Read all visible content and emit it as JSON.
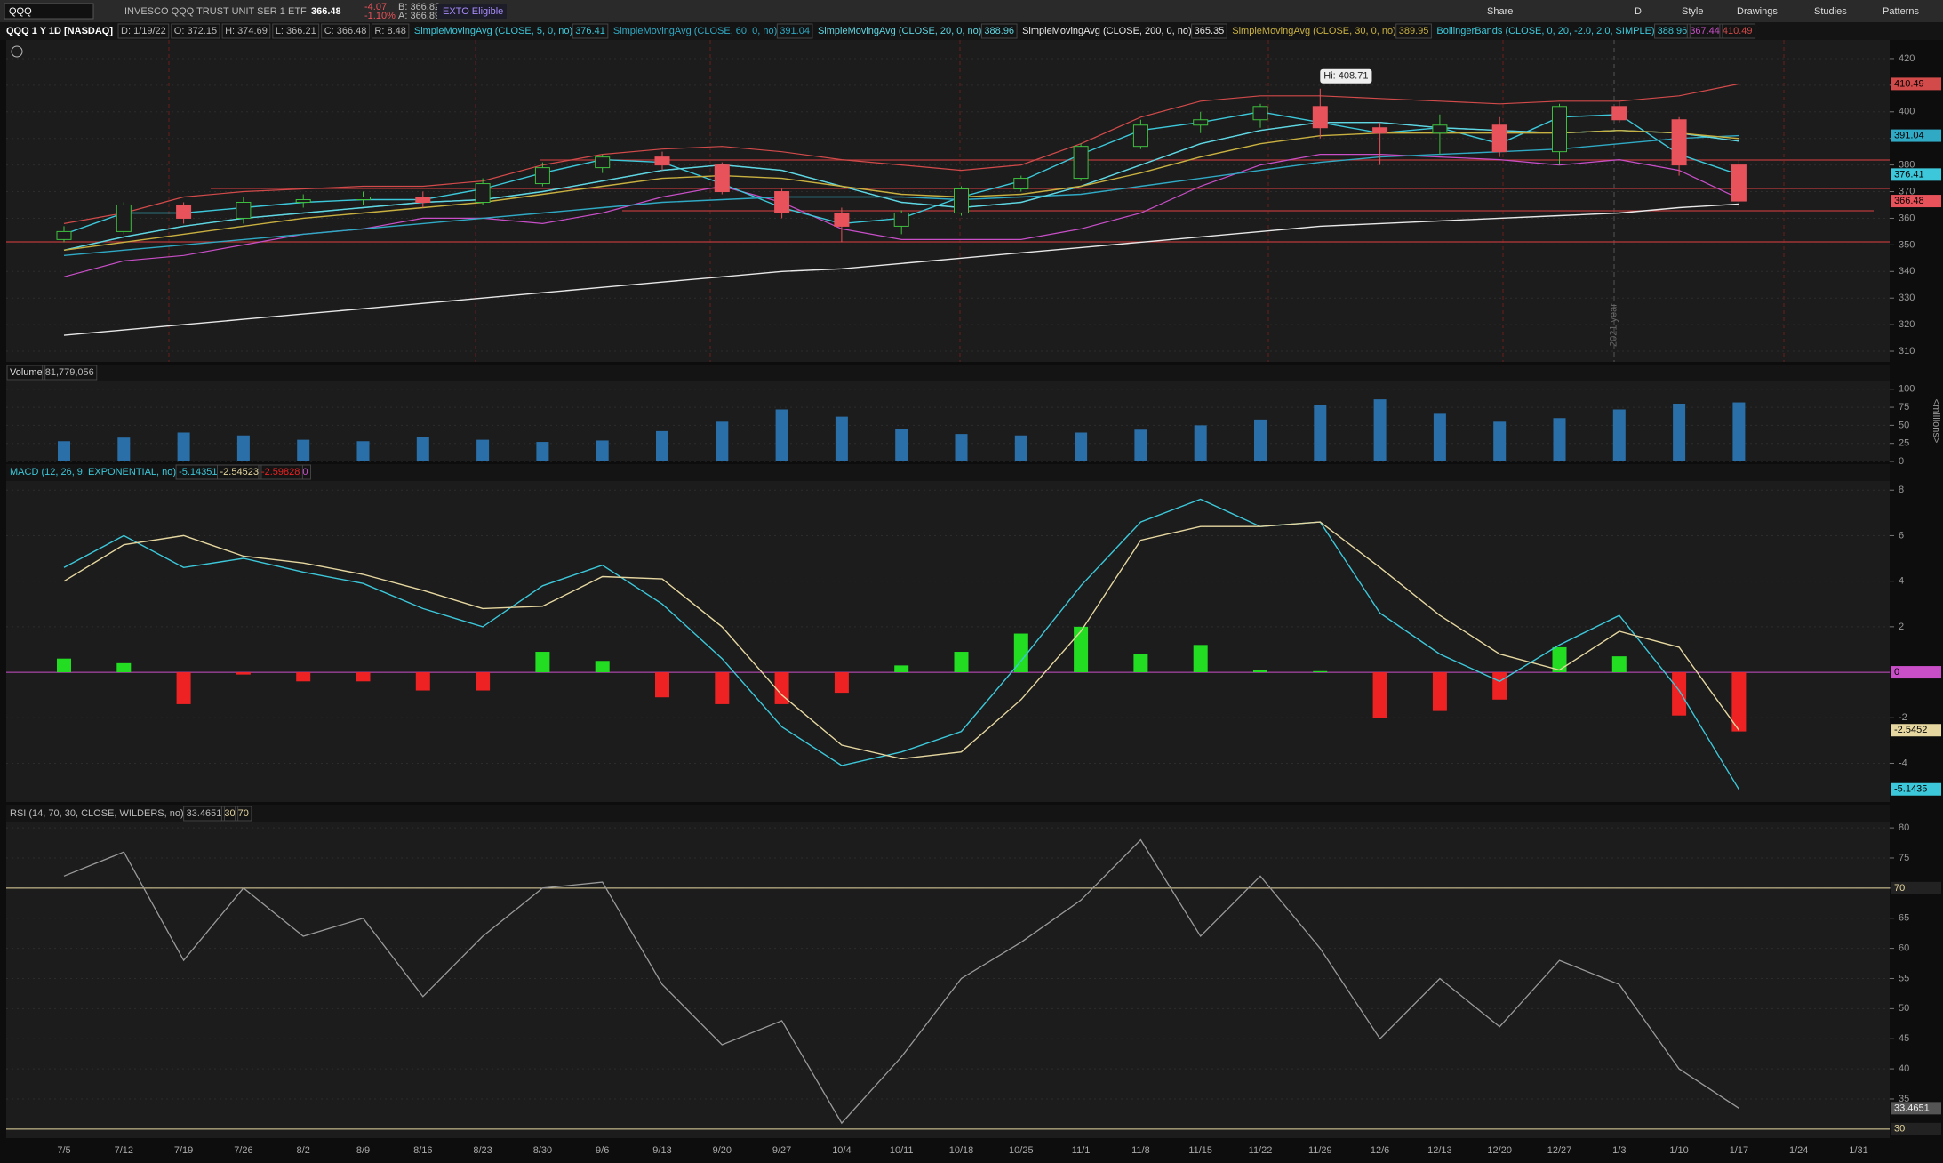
{
  "toolbar": {
    "symbol": "QQQ",
    "description": "INVESCO QQQ TRUST UNIT SER 1 ETF",
    "last": "366.48",
    "change": "-4.07",
    "change_pct": "-1.10%",
    "bid": "B: 366.82",
    "ask": "A: 366.89",
    "exto": "EXTO Eligible",
    "buttons": [
      "Share",
      "D",
      "Style",
      "Drawings",
      "Studies",
      "Patterns"
    ]
  },
  "header": {
    "title": "QQQ 1 Y 1D [NASDAQ]",
    "info": [
      "D: 1/19/22",
      "O: 372.15",
      "H: 374.69",
      "L: 366.21",
      "C: 366.48",
      "R: 8.48"
    ]
  },
  "chart_data": [
    {
      "type": "candlestick",
      "categories": [
        "7/5",
        "7/12",
        "7/19",
        "7/26",
        "8/2",
        "8/9",
        "8/16",
        "8/23",
        "8/30",
        "9/6",
        "9/13",
        "9/20",
        "9/27",
        "10/4",
        "10/11",
        "10/18",
        "10/25",
        "11/1",
        "11/8",
        "11/15",
        "11/22",
        "11/29",
        "12/6",
        "12/13",
        "12/20",
        "12/27",
        "1/3",
        "1/10",
        "1/17",
        "1/24",
        "1/31"
      ],
      "open": [
        352,
        355,
        365,
        360,
        366,
        367,
        368,
        366,
        373,
        379,
        383,
        380,
        370,
        362,
        357,
        362,
        371,
        375,
        387,
        395,
        397,
        402,
        394,
        392,
        395,
        385,
        402,
        397,
        380,
        null,
        null
      ],
      "high": [
        357,
        366,
        366,
        368,
        369,
        370,
        370,
        375,
        381,
        384,
        385,
        381,
        371,
        364,
        363,
        372,
        376,
        388,
        397,
        400,
        403,
        408.71,
        396,
        399,
        398,
        403,
        404,
        398,
        382,
        null,
        null
      ],
      "low": [
        351,
        354,
        358,
        358,
        364,
        365,
        364,
        365,
        372,
        377,
        378,
        369,
        360,
        351,
        354,
        361,
        370,
        374,
        386,
        392,
        394,
        390,
        380,
        384,
        383,
        380,
        396,
        376,
        364,
        null,
        null
      ],
      "close": [
        355,
        365,
        360,
        366,
        367,
        368,
        366,
        373,
        379,
        383,
        380,
        370,
        362,
        357,
        362,
        371,
        375,
        387,
        395,
        397,
        402,
        394,
        392,
        395,
        385,
        402,
        397,
        380,
        366.48,
        null,
        null
      ],
      "up_color": "#3fbf3f",
      "down_color": "#e8525a",
      "series": [
        {
          "name": "SimpleMovingAvg (CLOSE, 5, 0, no)",
          "color": "#3cc8da",
          "values": [
            354,
            362,
            362,
            364,
            366,
            367,
            367,
            371,
            377,
            382,
            381,
            373,
            364,
            358,
            360,
            368,
            374,
            384,
            393,
            396,
            400,
            396,
            392,
            394,
            388,
            398,
            399,
            384,
            376.41,
            null,
            null
          ]
        },
        {
          "name": "SimpleMovingAvg (CLOSE, 60, 0, no)",
          "color": "#2fa9c4",
          "values": [
            346,
            348,
            350,
            352,
            354,
            356,
            358,
            360,
            362,
            364,
            366,
            367,
            368,
            368,
            368,
            367,
            368,
            369,
            372,
            375,
            378,
            381,
            383,
            384,
            385,
            386,
            388,
            390,
            391.04,
            null,
            null
          ]
        },
        {
          "name": "SimpleMovingAvg (CLOSE, 20, 0, no)",
          "color": "#5fd6e2",
          "values": [
            348,
            353,
            357,
            360,
            362,
            364,
            366,
            367,
            370,
            374,
            378,
            380,
            378,
            372,
            366,
            364,
            366,
            372,
            380,
            388,
            393,
            396,
            396,
            394,
            393,
            392,
            393,
            392,
            388.96,
            null,
            null
          ]
        },
        {
          "name": "SimpleMovingAvg (CLOSE, 200, 0, no)",
          "color": "#e8e8e8",
          "values": [
            316,
            318,
            320,
            322,
            324,
            326,
            328,
            330,
            332,
            334,
            336,
            338,
            340,
            341,
            343,
            345,
            347,
            349,
            351,
            353,
            355,
            357,
            358,
            359,
            360,
            361,
            362,
            364,
            365.35,
            null,
            null
          ]
        },
        {
          "name": "SimpleMovingAvg (CLOSE, 30, 0, no)",
          "color": "#c8b040",
          "values": [
            348,
            351,
            354,
            357,
            360,
            362,
            364,
            366,
            369,
            372,
            375,
            376,
            375,
            372,
            369,
            368,
            369,
            372,
            377,
            383,
            388,
            391,
            392,
            392,
            392,
            392,
            393,
            392,
            389.95,
            null,
            null
          ]
        }
      ],
      "bands": {
        "name": "BollingerBands (CLOSE, 0, 20, -2.0, 2.0, SIMPLE)",
        "color": "#3cc8da",
        "upper_color": "#d24a4a",
        "lower_color": "#c84fc8",
        "middle": [
          348,
          353,
          357,
          360,
          362,
          364,
          366,
          367,
          370,
          374,
          378,
          380,
          378,
          372,
          366,
          364,
          366,
          372,
          380,
          388,
          393,
          396,
          396,
          394,
          393,
          392,
          393,
          392,
          388.96,
          null,
          null
        ],
        "lower": [
          338,
          344,
          346,
          350,
          354,
          356,
          360,
          360,
          358,
          362,
          368,
          372,
          366,
          356,
          352,
          352,
          352,
          356,
          362,
          372,
          380,
          384,
          384,
          383,
          382,
          380,
          382,
          378,
          367.44,
          null,
          null
        ],
        "upper": [
          358,
          362,
          368,
          370,
          371,
          372,
          372,
          374,
          380,
          384,
          386,
          387,
          385,
          382,
          380,
          378,
          380,
          388,
          398,
          404,
          406,
          406,
          405,
          404,
          403,
          404,
          404,
          406,
          410.49,
          null,
          null
        ]
      },
      "annotation": "Hi: 408.71",
      "year_label": "2021 year",
      "ylim": [
        306,
        427
      ],
      "yticks": [
        310,
        320,
        330,
        340,
        350,
        360,
        370,
        380,
        390,
        400,
        410,
        420
      ],
      "grid": true
    },
    {
      "type": "bar",
      "title": "Volume",
      "last_label": "81,779,056",
      "y_label": "<millions>",
      "color": "#2a6fa8",
      "values": [
        28,
        33,
        40,
        36,
        30,
        28,
        34,
        30,
        27,
        29,
        42,
        55,
        72,
        62,
        45,
        38,
        36,
        40,
        44,
        50,
        58,
        78,
        86,
        66,
        55,
        60,
        72,
        80,
        81.779056,
        null,
        null
      ],
      "ylim": [
        0,
        112
      ],
      "yticks": [
        0,
        25,
        50,
        75,
        100
      ],
      "grid": true
    },
    {
      "type": "macd",
      "title": "MACD (12, 26, 9, EXPONENTIAL, no)",
      "series": [
        {
          "name": "Value",
          "color": "#3cc8da",
          "last_label": "-5.1435",
          "values": [
            4.6,
            6.0,
            4.6,
            5.0,
            4.4,
            3.9,
            2.8,
            2.0,
            3.8,
            4.7,
            3.0,
            0.6,
            -2.4,
            -4.1,
            -3.5,
            -2.6,
            0.5,
            3.8,
            6.6,
            7.6,
            6.4,
            6.6,
            2.6,
            0.8,
            -0.4,
            1.2,
            2.5,
            -0.8,
            -5.14351,
            null,
            null
          ]
        },
        {
          "name": "Avg",
          "color": "#e6d7a0",
          "last_label": "-2.5452",
          "values": [
            4.0,
            5.6,
            6.0,
            5.1,
            4.8,
            4.3,
            3.6,
            2.8,
            2.9,
            4.2,
            4.1,
            2.0,
            -1.0,
            -3.2,
            -3.8,
            -3.5,
            -1.2,
            1.8,
            5.8,
            6.4,
            6.4,
            6.6,
            4.6,
            2.5,
            0.8,
            0.1,
            1.8,
            1.1,
            -2.54523,
            null,
            null
          ]
        }
      ],
      "histogram": [
        0.6,
        0.4,
        -1.4,
        -0.1,
        -0.4,
        -0.4,
        -0.8,
        -0.8,
        0.9,
        0.5,
        -1.1,
        -1.4,
        -1.4,
        -0.9,
        0.3,
        0.9,
        1.7,
        2.0,
        0.8,
        1.2,
        0.1,
        0.05,
        -2.0,
        -1.7,
        -1.2,
        1.1,
        0.7,
        -1.9,
        -2.59828,
        null,
        null
      ],
      "up_color": "#22dd22",
      "down_color": "#ee2222",
      "zero_line": 0,
      "zero_color": "#c84fc8",
      "ylim": [
        -5.7,
        8.4
      ],
      "yticks": [
        -4,
        -2,
        2,
        4,
        6,
        8
      ],
      "grid": true
    },
    {
      "type": "line",
      "title": "RSI (14, 70, 30, CLOSE, WILDERS, no)",
      "color": "#9a9a9a",
      "values": [
        72,
        76,
        58,
        70,
        62,
        65,
        52,
        62,
        70,
        71,
        54,
        44,
        48,
        31,
        42,
        55,
        61,
        68,
        78,
        62,
        72,
        60,
        45,
        55,
        47,
        58,
        54,
        40,
        33.4651,
        null,
        null
      ],
      "levels": [
        30,
        70
      ],
      "level_color": "#e6d7a0",
      "ylim": [
        28.5,
        80.9
      ],
      "yticks": [
        35,
        40,
        45,
        50,
        55,
        60,
        65,
        70,
        75,
        80
      ],
      "grid": true
    }
  ]
}
